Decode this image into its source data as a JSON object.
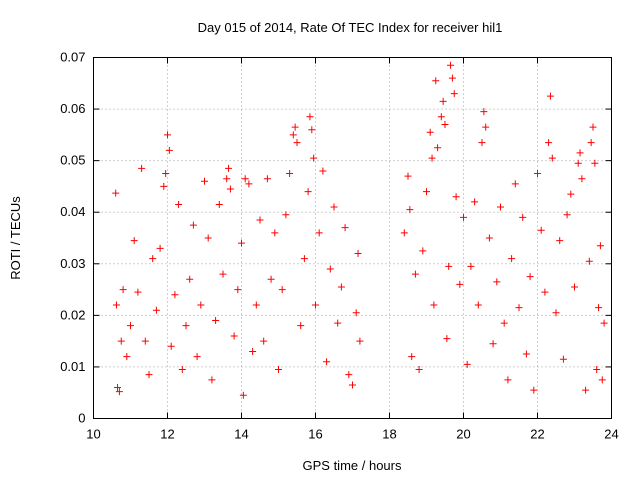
{
  "chart_data": {
    "type": "scatter",
    "title": "Day 015 of 2014, Rate Of TEC Index for receiver hil1",
    "xlabel": "GPS time / hours",
    "ylabel": "ROTI / TECUs",
    "xlim": [
      10,
      24
    ],
    "ylim": [
      0,
      0.07
    ],
    "x_ticks": [
      10,
      12,
      14,
      16,
      18,
      20,
      22,
      24
    ],
    "x_tick_labels": [
      "10",
      "12",
      "14",
      "16",
      "18",
      "20",
      "22",
      "24"
    ],
    "y_ticks": [
      0,
      0.01,
      0.02,
      0.03,
      0.04,
      0.05,
      0.06,
      0.07
    ],
    "y_tick_labels": [
      "0",
      "0.01",
      "0.02",
      "0.03",
      "0.04",
      "0.05",
      "0.06",
      "0.07"
    ],
    "grid": true,
    "marker": "+",
    "color": "#ff0000",
    "series": [
      {
        "name": "ROTI",
        "points": [
          [
            10.6,
            0.0437
          ],
          [
            10.62,
            0.022
          ],
          [
            10.65,
            0.006
          ],
          [
            10.7,
            0.0052
          ],
          [
            10.75,
            0.015
          ],
          [
            10.8,
            0.025
          ],
          [
            10.9,
            0.012
          ],
          [
            11.0,
            0.018
          ],
          [
            11.1,
            0.0345
          ],
          [
            11.2,
            0.0245
          ],
          [
            11.3,
            0.0485
          ],
          [
            11.4,
            0.015
          ],
          [
            11.5,
            0.0085
          ],
          [
            11.6,
            0.031
          ],
          [
            11.7,
            0.021
          ],
          [
            11.8,
            0.033
          ],
          [
            11.9,
            0.045
          ],
          [
            11.95,
            0.0475
          ],
          [
            12.0,
            0.055
          ],
          [
            12.05,
            0.052
          ],
          [
            12.1,
            0.014
          ],
          [
            12.2,
            0.024
          ],
          [
            12.3,
            0.0415
          ],
          [
            12.4,
            0.0095
          ],
          [
            12.5,
            0.018
          ],
          [
            12.6,
            0.027
          ],
          [
            12.7,
            0.0375
          ],
          [
            12.8,
            0.012
          ],
          [
            12.9,
            0.022
          ],
          [
            13.0,
            0.046
          ],
          [
            13.1,
            0.035
          ],
          [
            13.2,
            0.0075
          ],
          [
            13.3,
            0.019
          ],
          [
            13.4,
            0.0415
          ],
          [
            13.5,
            0.028
          ],
          [
            13.6,
            0.0465
          ],
          [
            13.65,
            0.0485
          ],
          [
            13.7,
            0.0445
          ],
          [
            13.8,
            0.016
          ],
          [
            13.9,
            0.025
          ],
          [
            14.0,
            0.034
          ],
          [
            14.05,
            0.0045
          ],
          [
            14.1,
            0.0465
          ],
          [
            14.2,
            0.0455
          ],
          [
            14.3,
            0.013
          ],
          [
            14.4,
            0.022
          ],
          [
            14.5,
            0.0385
          ],
          [
            14.6,
            0.015
          ],
          [
            14.7,
            0.0465
          ],
          [
            14.8,
            0.027
          ],
          [
            14.9,
            0.036
          ],
          [
            15.0,
            0.0095
          ],
          [
            15.1,
            0.025
          ],
          [
            15.2,
            0.0395
          ],
          [
            15.3,
            0.0475
          ],
          [
            15.4,
            0.055
          ],
          [
            15.45,
            0.0565
          ],
          [
            15.5,
            0.0535
          ],
          [
            15.6,
            0.018
          ],
          [
            15.7,
            0.031
          ],
          [
            15.8,
            0.044
          ],
          [
            15.85,
            0.0585
          ],
          [
            15.9,
            0.056
          ],
          [
            15.95,
            0.0505
          ],
          [
            16.0,
            0.022
          ],
          [
            16.1,
            0.036
          ],
          [
            16.2,
            0.048
          ],
          [
            16.3,
            0.011
          ],
          [
            16.4,
            0.029
          ],
          [
            16.5,
            0.041
          ],
          [
            16.6,
            0.0185
          ],
          [
            16.7,
            0.0255
          ],
          [
            16.8,
            0.037
          ],
          [
            16.9,
            0.0085
          ],
          [
            17.0,
            0.0065
          ],
          [
            17.1,
            0.0205
          ],
          [
            17.15,
            0.032
          ],
          [
            17.2,
            0.015
          ],
          [
            18.4,
            0.036
          ],
          [
            18.5,
            0.047
          ],
          [
            18.55,
            0.0405
          ],
          [
            18.6,
            0.012
          ],
          [
            18.7,
            0.028
          ],
          [
            18.8,
            0.0095
          ],
          [
            18.9,
            0.0325
          ],
          [
            19.0,
            0.044
          ],
          [
            19.1,
            0.0555
          ],
          [
            19.15,
            0.0505
          ],
          [
            19.2,
            0.022
          ],
          [
            19.25,
            0.0655
          ],
          [
            19.3,
            0.0525
          ],
          [
            19.4,
            0.0585
          ],
          [
            19.45,
            0.0615
          ],
          [
            19.5,
            0.057
          ],
          [
            19.55,
            0.0155
          ],
          [
            19.6,
            0.0295
          ],
          [
            19.65,
            0.0685
          ],
          [
            19.7,
            0.066
          ],
          [
            19.75,
            0.063
          ],
          [
            19.8,
            0.043
          ],
          [
            19.9,
            0.026
          ],
          [
            20.0,
            0.039
          ],
          [
            20.1,
            0.0105
          ],
          [
            20.2,
            0.0295
          ],
          [
            20.3,
            0.042
          ],
          [
            20.4,
            0.022
          ],
          [
            20.5,
            0.0535
          ],
          [
            20.55,
            0.0595
          ],
          [
            20.6,
            0.0565
          ],
          [
            20.7,
            0.035
          ],
          [
            20.8,
            0.0145
          ],
          [
            20.9,
            0.0265
          ],
          [
            21.0,
            0.041
          ],
          [
            21.1,
            0.0185
          ],
          [
            21.2,
            0.0075
          ],
          [
            21.3,
            0.031
          ],
          [
            21.4,
            0.0455
          ],
          [
            21.5,
            0.0215
          ],
          [
            21.6,
            0.039
          ],
          [
            21.7,
            0.0125
          ],
          [
            21.8,
            0.0275
          ],
          [
            21.9,
            0.0055
          ],
          [
            22.0,
            0.0475
          ],
          [
            22.1,
            0.0365
          ],
          [
            22.2,
            0.0245
          ],
          [
            22.3,
            0.0535
          ],
          [
            22.35,
            0.0625
          ],
          [
            22.4,
            0.0505
          ],
          [
            22.5,
            0.0205
          ],
          [
            22.6,
            0.0345
          ],
          [
            22.7,
            0.0115
          ],
          [
            22.8,
            0.0395
          ],
          [
            22.9,
            0.0435
          ],
          [
            23.0,
            0.0255
          ],
          [
            23.1,
            0.0495
          ],
          [
            23.15,
            0.0515
          ],
          [
            23.2,
            0.0465
          ],
          [
            23.3,
            0.0055
          ],
          [
            23.4,
            0.0305
          ],
          [
            23.45,
            0.0535
          ],
          [
            23.5,
            0.0565
          ],
          [
            23.55,
            0.0495
          ],
          [
            23.6,
            0.0095
          ],
          [
            23.65,
            0.0215
          ],
          [
            23.7,
            0.0335
          ],
          [
            23.75,
            0.0075
          ],
          [
            23.8,
            0.0185
          ]
        ]
      }
    ]
  }
}
